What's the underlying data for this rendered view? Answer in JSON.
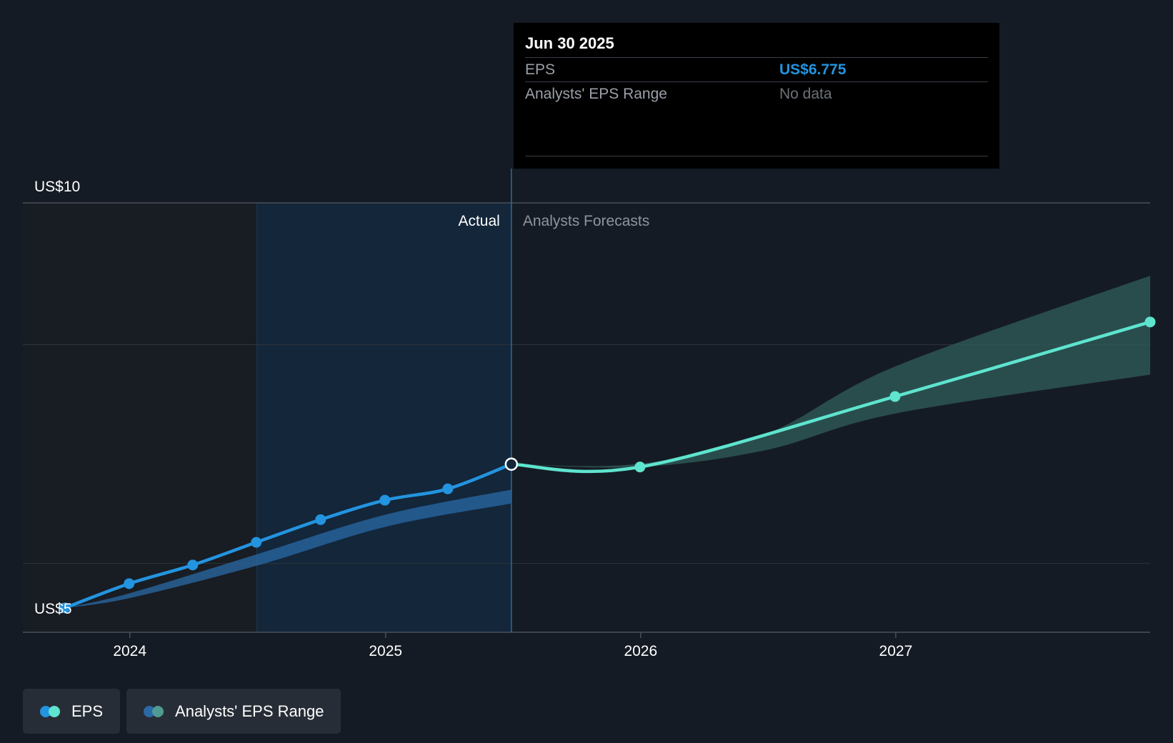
{
  "chart_data": {
    "type": "line",
    "x_range": [
      "2023-08-01",
      "2027-12-31"
    ],
    "ylim": [
      4.7,
      10
    ],
    "y_ticks": [
      {
        "value": 10,
        "label": "US$10"
      },
      {
        "value": 5,
        "label": "US$5"
      }
    ],
    "x_ticks": [
      {
        "date": "2024-01-01",
        "label": "2024"
      },
      {
        "date": "2025-01-01",
        "label": "2025"
      },
      {
        "date": "2026-01-01",
        "label": "2026"
      },
      {
        "date": "2027-01-01",
        "label": "2027"
      }
    ],
    "grid": true,
    "highlight_start": "2024-07-01",
    "divider_date": "2025-06-30",
    "region_labels": {
      "actual": "Actual",
      "forecast": "Analysts Forecasts"
    },
    "series": [
      {
        "name": "EPS",
        "color": "#2394df",
        "points": [
          {
            "x": "2023-09-30",
            "y": 5.0
          },
          {
            "x": "2023-12-31",
            "y": 5.3
          },
          {
            "x": "2024-03-31",
            "y": 5.53
          },
          {
            "x": "2024-06-30",
            "y": 5.81
          },
          {
            "x": "2024-09-30",
            "y": 6.09
          },
          {
            "x": "2024-12-31",
            "y": 6.33
          },
          {
            "x": "2025-03-31",
            "y": 6.47
          },
          {
            "x": "2025-06-30",
            "y": 6.775
          }
        ]
      },
      {
        "name": "EPS Forecast",
        "color": "#5ee4cf",
        "points": [
          {
            "x": "2025-06-30",
            "y": 6.775
          },
          {
            "x": "2025-12-31",
            "y": 6.74
          },
          {
            "x": "2026-12-31",
            "y": 7.61
          },
          {
            "x": "2027-12-31",
            "y": 8.53
          }
        ]
      }
    ],
    "past_range_band": {
      "color": "#2a6aa6",
      "points": [
        {
          "x": "2023-09-30",
          "low": 5.0,
          "high": 5.0
        },
        {
          "x": "2023-12-31",
          "low": 5.12,
          "high": 5.18
        },
        {
          "x": "2024-06-30",
          "low": 5.52,
          "high": 5.66
        },
        {
          "x": "2024-12-31",
          "low": 6.0,
          "high": 6.15
        },
        {
          "x": "2025-06-30",
          "low": 6.29,
          "high": 6.46
        }
      ]
    },
    "forecast_range_band": {
      "color": "#2e5a58",
      "points": [
        {
          "x": "2025-06-30",
          "low": 6.775,
          "high": 6.775
        },
        {
          "x": "2025-12-31",
          "low": 6.74,
          "high": 6.78
        },
        {
          "x": "2026-06-30",
          "low": 6.95,
          "high": 7.15
        },
        {
          "x": "2026-12-31",
          "low": 7.4,
          "high": 7.98
        },
        {
          "x": "2027-12-31",
          "low": 7.88,
          "high": 9.1
        }
      ]
    }
  },
  "tooltip": {
    "date": "Jun 30 2025",
    "eps_label": "EPS",
    "eps_value": "US$6.775",
    "range_label": "Analysts' EPS Range",
    "range_value": "No data"
  },
  "legend": [
    {
      "label": "EPS",
      "colors": [
        "#2394df",
        "#5ee4cf"
      ]
    },
    {
      "label": "Analysts' EPS Range",
      "colors": [
        "#2a6aa6",
        "#4f9b93"
      ]
    }
  ]
}
